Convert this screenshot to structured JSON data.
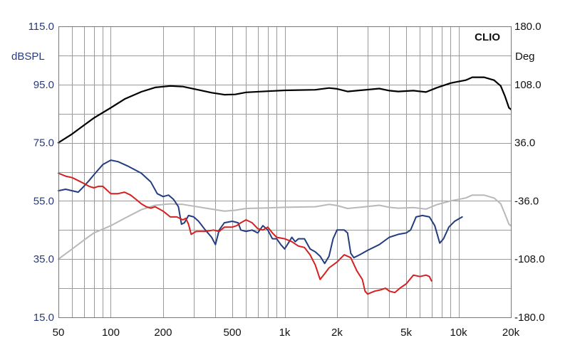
{
  "brand": "CLIO",
  "chart_data": {
    "type": "line",
    "xscale": "log",
    "xlim": [
      50,
      20000
    ],
    "ylim_left": [
      15.0,
      115.0
    ],
    "ylim_right": [
      -180.0,
      180.0
    ],
    "ylabel_left": "dBSPL",
    "ylabel_right": "Deg",
    "grid": true,
    "x_ticks": [
      {
        "value": 50,
        "label": "50"
      },
      {
        "value": 100,
        "label": "100"
      },
      {
        "value": 200,
        "label": "200"
      },
      {
        "value": 500,
        "label": "500"
      },
      {
        "value": 1000,
        "label": "1k"
      },
      {
        "value": 2000,
        "label": "2k"
      },
      {
        "value": 5000,
        "label": "5k"
      },
      {
        "value": 10000,
        "label": "10k"
      },
      {
        "value": 20000,
        "label": "20k"
      }
    ],
    "left_ticks": [
      {
        "value": 115.0,
        "label": "115.0"
      },
      {
        "value": 95.0,
        "label": "95.0"
      },
      {
        "value": 75.0,
        "label": "75.0"
      },
      {
        "value": 55.0,
        "label": "55.0"
      },
      {
        "value": 35.0,
        "label": "35.0"
      },
      {
        "value": 15.0,
        "label": "15.0"
      }
    ],
    "right_ticks": [
      {
        "value": 180.0,
        "label": "180.0"
      },
      {
        "value": 108.0,
        "label": "108.0"
      },
      {
        "value": 36.0,
        "label": "36.0"
      },
      {
        "value": -36.0,
        "label": "-36.0"
      },
      {
        "value": -108.0,
        "label": "-108.0"
      },
      {
        "value": -180.0,
        "label": "-180.0"
      }
    ],
    "series": [
      {
        "color": "#000000",
        "width": 2.2,
        "points": [
          [
            50,
            75
          ],
          [
            60,
            78
          ],
          [
            70,
            81
          ],
          [
            80,
            83.5
          ],
          [
            100,
            87
          ],
          [
            120,
            90
          ],
          [
            150,
            92.5
          ],
          [
            180,
            94
          ],
          [
            220,
            94.5
          ],
          [
            260,
            94.3
          ],
          [
            300,
            93.5
          ],
          [
            380,
            92.2
          ],
          [
            450,
            91.5
          ],
          [
            520,
            91.6
          ],
          [
            600,
            92.3
          ],
          [
            800,
            92.7
          ],
          [
            1000,
            93
          ],
          [
            1500,
            93.2
          ],
          [
            1800,
            93.8
          ],
          [
            2000,
            93.5
          ],
          [
            2300,
            92.6
          ],
          [
            2700,
            93
          ],
          [
            3500,
            93.6
          ],
          [
            4000,
            92.9
          ],
          [
            4500,
            92.6
          ],
          [
            5500,
            92.9
          ],
          [
            6500,
            92.4
          ],
          [
            7500,
            93.9
          ],
          [
            9000,
            95.5
          ],
          [
            11000,
            96.5
          ],
          [
            12000,
            97.5
          ],
          [
            14000,
            97.5
          ],
          [
            16000,
            96.5
          ],
          [
            17500,
            94.5
          ],
          [
            18500,
            91
          ],
          [
            19500,
            87
          ],
          [
            20000,
            86.5
          ]
        ]
      },
      {
        "color": "#b8b8b8",
        "width": 2,
        "points": [
          [
            50,
            35
          ],
          [
            60,
            38.5
          ],
          [
            70,
            41.5
          ],
          [
            80,
            44
          ],
          [
            100,
            46.5
          ],
          [
            120,
            49
          ],
          [
            150,
            52
          ],
          [
            180,
            53.5
          ],
          [
            220,
            54
          ],
          [
            260,
            53.8
          ],
          [
            300,
            53.2
          ],
          [
            380,
            52.2
          ],
          [
            450,
            51.5
          ],
          [
            520,
            51.8
          ],
          [
            600,
            52.4
          ],
          [
            800,
            52.6
          ],
          [
            1000,
            52.8
          ],
          [
            1500,
            53
          ],
          [
            1800,
            53.8
          ],
          [
            2000,
            53.4
          ],
          [
            2300,
            52.4
          ],
          [
            2700,
            52.8
          ],
          [
            3500,
            53.5
          ],
          [
            4000,
            52.8
          ],
          [
            4500,
            52.5
          ],
          [
            5500,
            52.7
          ],
          [
            6500,
            52.2
          ],
          [
            7500,
            53.7
          ],
          [
            9000,
            55
          ],
          [
            11000,
            56
          ],
          [
            12000,
            57
          ],
          [
            14000,
            57
          ],
          [
            16000,
            56
          ],
          [
            17500,
            54
          ],
          [
            18500,
            50.5
          ],
          [
            19500,
            47
          ],
          [
            20000,
            46.5
          ]
        ]
      },
      {
        "color": "#233d80",
        "width": 2,
        "points": [
          [
            50,
            58.5
          ],
          [
            55,
            59
          ],
          [
            60,
            58.5
          ],
          [
            65,
            58
          ],
          [
            70,
            60
          ],
          [
            75,
            62
          ],
          [
            80,
            64
          ],
          [
            90,
            67.5
          ],
          [
            100,
            69
          ],
          [
            110,
            68.5
          ],
          [
            125,
            67
          ],
          [
            150,
            64.5
          ],
          [
            170,
            61.5
          ],
          [
            185,
            57.5
          ],
          [
            200,
            56.5
          ],
          [
            215,
            57
          ],
          [
            230,
            55.5
          ],
          [
            245,
            53
          ],
          [
            255,
            47
          ],
          [
            265,
            47.5
          ],
          [
            280,
            50
          ],
          [
            300,
            49.5
          ],
          [
            320,
            48
          ],
          [
            350,
            45
          ],
          [
            380,
            42.5
          ],
          [
            400,
            40
          ],
          [
            420,
            45
          ],
          [
            450,
            47.5
          ],
          [
            500,
            48
          ],
          [
            540,
            47.5
          ],
          [
            560,
            45
          ],
          [
            600,
            44.5
          ],
          [
            650,
            45
          ],
          [
            700,
            44
          ],
          [
            750,
            46.5
          ],
          [
            800,
            45
          ],
          [
            850,
            42
          ],
          [
            900,
            42
          ],
          [
            950,
            40
          ],
          [
            1000,
            38.5
          ],
          [
            1050,
            40.5
          ],
          [
            1100,
            42.5
          ],
          [
            1150,
            41
          ],
          [
            1200,
            42
          ],
          [
            1300,
            42
          ],
          [
            1400,
            38.5
          ],
          [
            1500,
            37.5
          ],
          [
            1600,
            36
          ],
          [
            1700,
            33.5
          ],
          [
            1800,
            36
          ],
          [
            1900,
            42
          ],
          [
            2000,
            45
          ],
          [
            2200,
            45
          ],
          [
            2300,
            44
          ],
          [
            2400,
            37
          ],
          [
            2500,
            35.5
          ],
          [
            2700,
            36.5
          ],
          [
            3000,
            38
          ],
          [
            3500,
            40
          ],
          [
            4000,
            42.5
          ],
          [
            4500,
            43.5
          ],
          [
            5000,
            44
          ],
          [
            5300,
            45
          ],
          [
            5700,
            49.5
          ],
          [
            6200,
            50
          ],
          [
            6800,
            49.5
          ],
          [
            7300,
            46.5
          ],
          [
            7800,
            40.5
          ],
          [
            8200,
            42
          ],
          [
            8800,
            46
          ],
          [
            9500,
            48
          ],
          [
            10500,
            49.5
          ]
        ]
      },
      {
        "color": "#d42020",
        "width": 2,
        "points": [
          [
            50,
            64.5
          ],
          [
            55,
            63.5
          ],
          [
            60,
            63
          ],
          [
            65,
            62
          ],
          [
            70,
            61
          ],
          [
            75,
            60
          ],
          [
            80,
            59.5
          ],
          [
            85,
            60
          ],
          [
            90,
            60
          ],
          [
            100,
            57.5
          ],
          [
            110,
            57.5
          ],
          [
            120,
            58
          ],
          [
            130,
            57
          ],
          [
            140,
            55.5
          ],
          [
            150,
            54
          ],
          [
            160,
            53
          ],
          [
            170,
            52.5
          ],
          [
            180,
            53
          ],
          [
            200,
            51.5
          ],
          [
            220,
            49.5
          ],
          [
            240,
            49.5
          ],
          [
            260,
            48.5
          ],
          [
            270,
            49
          ],
          [
            280,
            47
          ],
          [
            290,
            43.5
          ],
          [
            310,
            44.5
          ],
          [
            350,
            44.5
          ],
          [
            390,
            45
          ],
          [
            420,
            44.5
          ],
          [
            450,
            46
          ],
          [
            500,
            46
          ],
          [
            530,
            46.5
          ],
          [
            560,
            47.5
          ],
          [
            600,
            48.5
          ],
          [
            650,
            47.5
          ],
          [
            700,
            45.5
          ],
          [
            750,
            45
          ],
          [
            800,
            46
          ],
          [
            850,
            44
          ],
          [
            900,
            42.5
          ],
          [
            1000,
            42
          ],
          [
            1100,
            41
          ],
          [
            1200,
            39.5
          ],
          [
            1300,
            39
          ],
          [
            1400,
            36.5
          ],
          [
            1500,
            33
          ],
          [
            1600,
            28
          ],
          [
            1700,
            30
          ],
          [
            1800,
            32
          ],
          [
            2000,
            34
          ],
          [
            2200,
            36.5
          ],
          [
            2400,
            35.5
          ],
          [
            2600,
            31
          ],
          [
            2800,
            28
          ],
          [
            2900,
            24
          ],
          [
            3000,
            23
          ],
          [
            3300,
            24
          ],
          [
            3600,
            24.5
          ],
          [
            3800,
            25
          ],
          [
            4000,
            24
          ],
          [
            4300,
            23.5
          ],
          [
            4600,
            25
          ],
          [
            5000,
            26.5
          ],
          [
            5500,
            29.5
          ],
          [
            6000,
            29
          ],
          [
            6500,
            29.5
          ],
          [
            6800,
            29
          ],
          [
            7000,
            27.5
          ]
        ]
      }
    ]
  }
}
